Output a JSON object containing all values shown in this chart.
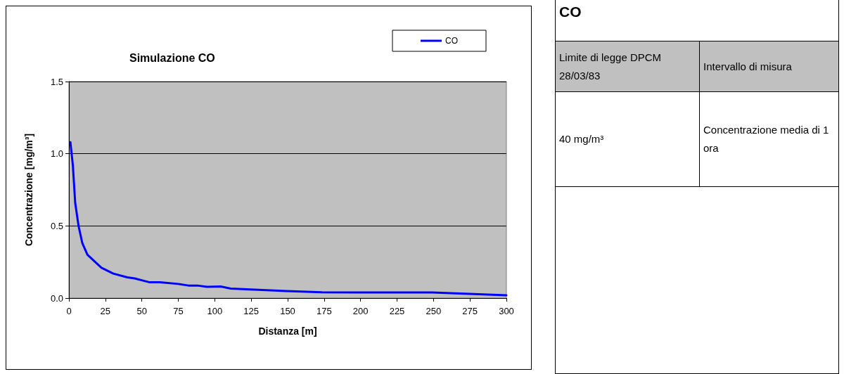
{
  "chart_data": [
    {
      "type": "line",
      "title": "Simulazione CO",
      "xlabel": "Distanza [m]",
      "ylabel": "Concentrazione [mg/m³]",
      "x": [
        1,
        2.7,
        4.3,
        6.6,
        9.2,
        12.7,
        22.3,
        30.4,
        40,
        45,
        51.3,
        55,
        62.5,
        75,
        82,
        88,
        94.7,
        104,
        111,
        149,
        173.5,
        200,
        249,
        300
      ],
      "series": [
        {
          "name": "CO",
          "color": "#0000ff",
          "values": [
            1.08,
            0.92,
            0.66,
            0.5,
            0.38,
            0.3,
            0.21,
            0.17,
            0.144,
            0.136,
            0.12,
            0.11,
            0.11,
            0.098,
            0.087,
            0.087,
            0.078,
            0.08,
            0.066,
            0.049,
            0.04,
            0.039,
            0.039,
            0.02
          ]
        }
      ],
      "xlim": [
        0,
        300
      ],
      "xticks": [
        0,
        25,
        50,
        75,
        100,
        125,
        150,
        175,
        200,
        225,
        250,
        275,
        300
      ],
      "ylim": [
        0,
        1.5
      ],
      "yticks": [
        {
          "value": 0,
          "label": "0.0"
        },
        {
          "value": 0.5,
          "label": "0.5"
        },
        {
          "value": 1,
          "label": "1.0"
        },
        {
          "value": 1.5,
          "label": "1.5"
        }
      ],
      "grid": "y",
      "legend": "top right",
      "marker": "none",
      "line_style": "solid"
    },
    {
      "type": "other",
      "title": "CO",
      "annotations": [
        "Limite di legge DPCM 28/03/83",
        "Intervallo di misura",
        "40 mg/m³",
        "Concentrazione media di 1 ora"
      ]
    }
  ]
}
